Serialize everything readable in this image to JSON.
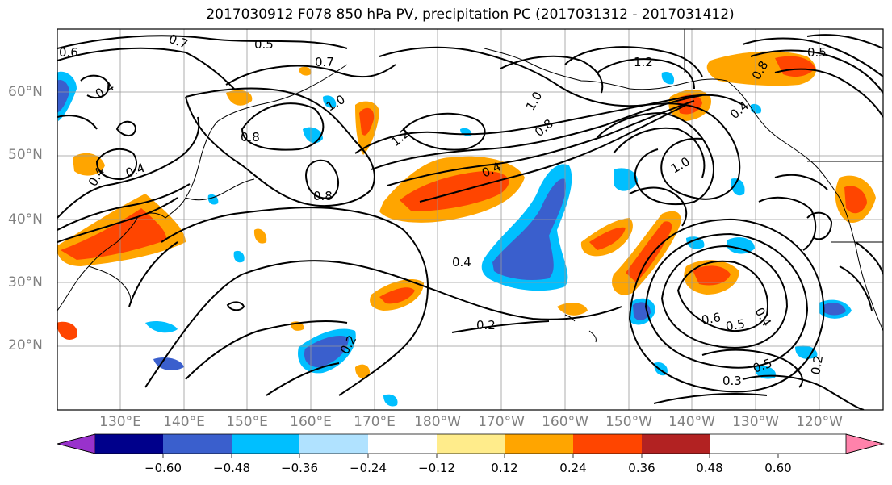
{
  "title": "2017030912 F078 850 hPa PV, precipitation PC (2017031312 - 2017031412)",
  "lat_labels": [
    "60°N",
    "50°N",
    "40°N",
    "30°N",
    "20°N"
  ],
  "lon_labels": [
    "130°E",
    "140°E",
    "150°E",
    "160°E",
    "170°E",
    "180°W",
    "170°W",
    "160°W",
    "150°W",
    "140°W",
    "130°W",
    "120°W"
  ],
  "contour_labels": [
    "0.5",
    "0.7",
    "0.6",
    "0.4",
    "0.7",
    "1.0",
    "0.8",
    "0.8",
    "0.4",
    "0.4",
    "1.2",
    "1.2",
    "1.0",
    "0.4",
    "0.8",
    "0.5",
    "0.8",
    "0.4",
    "0.4",
    "0.2",
    "0.6",
    "0.5",
    "0.4",
    "0.3",
    "0.2",
    "0.2",
    "0.5",
    "1.0"
  ],
  "colorbar": {
    "ticks": [
      "−0.60",
      "−0.48",
      "−0.36",
      "−0.24",
      "−0.12",
      "0.12",
      "0.24",
      "0.36",
      "0.48",
      "0.60"
    ],
    "colors": [
      "#9932cc",
      "#00008b",
      "#3a5fcd",
      "#00bfff",
      "#b0e2ff",
      "#ffffff",
      "#ffec8b",
      "#ffa500",
      "#ff4500",
      "#b22222",
      "#ff82ab"
    ]
  },
  "shading": {
    "positive_colors": [
      "#ffec8b",
      "#ffa500",
      "#ff4500"
    ],
    "negative_colors": [
      "#b0e2ff",
      "#00bfff",
      "#3a5fcd"
    ]
  }
}
